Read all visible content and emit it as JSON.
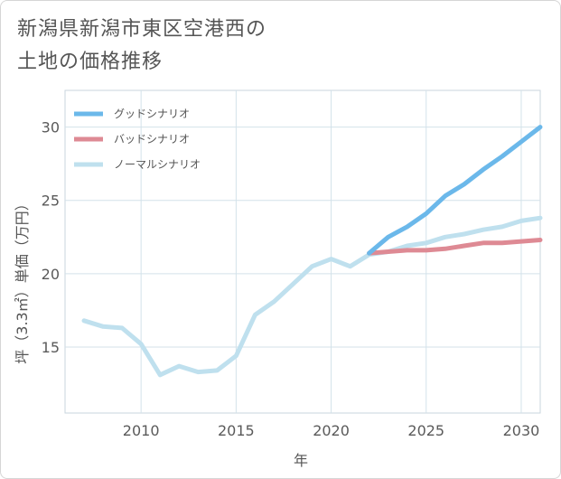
{
  "title_lines": [
    "新潟県新潟市東区空港西の",
    "土地の価格推移"
  ],
  "chart_data": {
    "type": "line",
    "title": "新潟県新潟市東区空港西の土地の価格推移",
    "xlabel": "年",
    "ylabel": "坪（3.3㎡）単価（万円）",
    "xlim": [
      2006,
      2031
    ],
    "ylim": [
      10.5,
      32.5
    ],
    "xticks": [
      2010,
      2015,
      2020,
      2025,
      2030
    ],
    "yticks": [
      15,
      20,
      25,
      30
    ],
    "grid": true,
    "legend_position": "top-left",
    "series": [
      {
        "name": "グッドシナリオ",
        "color": "#6bb8ea",
        "x": [
          2022,
          2023,
          2024,
          2025,
          2026,
          2027,
          2028,
          2029,
          2030,
          2031
        ],
        "y": [
          21.4,
          22.5,
          23.2,
          24.1,
          25.3,
          26.1,
          27.1,
          28.0,
          29.0,
          30.0
        ]
      },
      {
        "name": "バッドシナリオ",
        "color": "#de8a94",
        "x": [
          2022,
          2023,
          2024,
          2025,
          2026,
          2027,
          2028,
          2029,
          2030,
          2031
        ],
        "y": [
          21.4,
          21.5,
          21.6,
          21.6,
          21.7,
          21.9,
          22.1,
          22.1,
          22.2,
          22.3
        ]
      },
      {
        "name": "ノーマルシナリオ",
        "color": "#bfe0ee",
        "x": [
          2007,
          2008,
          2009,
          2010,
          2011,
          2012,
          2013,
          2014,
          2015,
          2016,
          2017,
          2018,
          2019,
          2020,
          2021,
          2022,
          2023,
          2024,
          2025,
          2026,
          2027,
          2028,
          2029,
          2030,
          2031
        ],
        "y": [
          16.8,
          16.4,
          16.3,
          15.2,
          13.1,
          13.7,
          13.3,
          13.4,
          14.4,
          17.2,
          18.1,
          19.3,
          20.5,
          21.0,
          20.5,
          21.3,
          21.5,
          21.9,
          22.1,
          22.5,
          22.7,
          23.0,
          23.2,
          23.6,
          23.8
        ]
      }
    ]
  }
}
